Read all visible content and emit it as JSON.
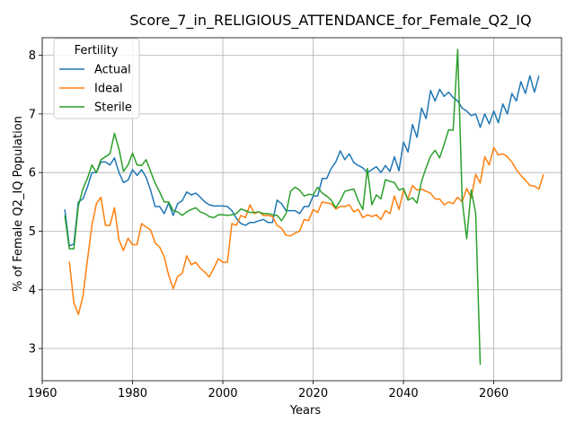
{
  "chart_data": {
    "type": "line",
    "title": "Score_7_in_RELIGIOUS_ATTENDANCE_for_Female_Q2_IQ",
    "xlabel": "Years",
    "ylabel": "% of Female Q2_IQ Population",
    "xlim": [
      1960,
      2075
    ],
    "ylim": [
      2.45,
      8.3
    ],
    "xticks": [
      1960,
      1980,
      2000,
      2020,
      2040,
      2060
    ],
    "xtick_labels": [
      "1960",
      "1980",
      "2000",
      "2020",
      "2040",
      "2060"
    ],
    "yticks": [
      3,
      4,
      5,
      6,
      7,
      8
    ],
    "ytick_labels": [
      "3",
      "4",
      "5",
      "6",
      "7",
      "8"
    ],
    "grid": true,
    "legend": {
      "title": "Fertility",
      "position": "top-left"
    },
    "series": [
      {
        "name": "Actual",
        "color": "#1f77b4",
        "points": [
          [
            1965,
            5.37
          ],
          [
            1966,
            4.75
          ],
          [
            1967,
            4.78
          ],
          [
            1968,
            5.5
          ],
          [
            1969,
            5.55
          ],
          [
            1970,
            5.75
          ],
          [
            1971,
            6.0
          ],
          [
            1972,
            6.0
          ],
          [
            1973,
            6.18
          ],
          [
            1974,
            6.18
          ],
          [
            1975,
            6.13
          ],
          [
            1976,
            6.25
          ],
          [
            1977,
            6.0
          ],
          [
            1978,
            5.83
          ],
          [
            1979,
            5.87
          ],
          [
            1980,
            6.05
          ],
          [
            1981,
            5.95
          ],
          [
            1982,
            6.05
          ],
          [
            1983,
            5.92
          ],
          [
            1984,
            5.7
          ],
          [
            1985,
            5.42
          ],
          [
            1986,
            5.42
          ],
          [
            1987,
            5.3
          ],
          [
            1988,
            5.48
          ],
          [
            1989,
            5.27
          ],
          [
            1990,
            5.47
          ],
          [
            1991,
            5.52
          ],
          [
            1992,
            5.67
          ],
          [
            1993,
            5.62
          ],
          [
            1994,
            5.65
          ],
          [
            1995,
            5.58
          ],
          [
            1996,
            5.5
          ],
          [
            1997,
            5.45
          ],
          [
            1998,
            5.43
          ],
          [
            1999,
            5.43
          ],
          [
            2000,
            5.43
          ],
          [
            2001,
            5.42
          ],
          [
            2002,
            5.35
          ],
          [
            2003,
            5.22
          ],
          [
            2004,
            5.13
          ],
          [
            2005,
            5.1
          ],
          [
            2006,
            5.15
          ],
          [
            2007,
            5.15
          ],
          [
            2008,
            5.18
          ],
          [
            2009,
            5.2
          ],
          [
            2010,
            5.15
          ],
          [
            2011,
            5.15
          ],
          [
            2012,
            5.53
          ],
          [
            2013,
            5.47
          ],
          [
            2014,
            5.35
          ],
          [
            2015,
            5.35
          ],
          [
            2016,
            5.35
          ],
          [
            2017,
            5.3
          ],
          [
            2018,
            5.42
          ],
          [
            2019,
            5.42
          ],
          [
            2020,
            5.6
          ],
          [
            2021,
            5.6
          ],
          [
            2022,
            5.9
          ],
          [
            2023,
            5.9
          ],
          [
            2024,
            6.07
          ],
          [
            2025,
            6.18
          ],
          [
            2026,
            6.37
          ],
          [
            2027,
            6.22
          ],
          [
            2028,
            6.32
          ],
          [
            2029,
            6.17
          ],
          [
            2030,
            6.12
          ],
          [
            2031,
            6.08
          ],
          [
            2032,
            6.0
          ],
          [
            2033,
            6.05
          ],
          [
            2034,
            6.1
          ],
          [
            2035,
            6.0
          ],
          [
            2036,
            6.12
          ],
          [
            2037,
            6.02
          ],
          [
            2038,
            6.27
          ],
          [
            2039,
            6.03
          ],
          [
            2040,
            6.52
          ],
          [
            2041,
            6.35
          ],
          [
            2042,
            6.82
          ],
          [
            2043,
            6.6
          ],
          [
            2044,
            7.1
          ],
          [
            2045,
            6.92
          ],
          [
            2046,
            7.4
          ],
          [
            2047,
            7.22
          ],
          [
            2048,
            7.42
          ],
          [
            2049,
            7.3
          ],
          [
            2050,
            7.37
          ],
          [
            2051,
            7.28
          ],
          [
            2052,
            7.22
          ],
          [
            2053,
            7.1
          ],
          [
            2054,
            7.05
          ],
          [
            2055,
            6.97
          ],
          [
            2056,
            7.0
          ],
          [
            2057,
            6.77
          ],
          [
            2058,
            7.0
          ],
          [
            2059,
            6.83
          ],
          [
            2060,
            7.05
          ],
          [
            2061,
            6.85
          ],
          [
            2062,
            7.17
          ],
          [
            2063,
            7.0
          ],
          [
            2064,
            7.35
          ],
          [
            2065,
            7.22
          ],
          [
            2066,
            7.55
          ],
          [
            2067,
            7.35
          ],
          [
            2068,
            7.65
          ],
          [
            2069,
            7.37
          ],
          [
            2070,
            7.65
          ]
        ]
      },
      {
        "name": "Ideal",
        "color": "#ff7f0e",
        "points": [
          [
            1966,
            4.48
          ],
          [
            1967,
            3.78
          ],
          [
            1968,
            3.58
          ],
          [
            1969,
            3.88
          ],
          [
            1970,
            4.5
          ],
          [
            1971,
            5.1
          ],
          [
            1972,
            5.47
          ],
          [
            1973,
            5.58
          ],
          [
            1974,
            5.1
          ],
          [
            1975,
            5.1
          ],
          [
            1976,
            5.4
          ],
          [
            1977,
            4.85
          ],
          [
            1978,
            4.67
          ],
          [
            1979,
            4.88
          ],
          [
            1980,
            4.77
          ],
          [
            1981,
            4.77
          ],
          [
            1982,
            5.13
          ],
          [
            1983,
            5.07
          ],
          [
            1984,
            5.02
          ],
          [
            1985,
            4.8
          ],
          [
            1986,
            4.73
          ],
          [
            1987,
            4.57
          ],
          [
            1988,
            4.25
          ],
          [
            1989,
            4.02
          ],
          [
            1990,
            4.23
          ],
          [
            1991,
            4.28
          ],
          [
            1992,
            4.58
          ],
          [
            1993,
            4.43
          ],
          [
            1994,
            4.47
          ],
          [
            1995,
            4.37
          ],
          [
            1996,
            4.3
          ],
          [
            1997,
            4.22
          ],
          [
            1998,
            4.37
          ],
          [
            1999,
            4.53
          ],
          [
            2000,
            4.47
          ],
          [
            2001,
            4.47
          ],
          [
            2002,
            5.13
          ],
          [
            2003,
            5.1
          ],
          [
            2004,
            5.27
          ],
          [
            2005,
            5.23
          ],
          [
            2006,
            5.45
          ],
          [
            2007,
            5.3
          ],
          [
            2008,
            5.33
          ],
          [
            2009,
            5.27
          ],
          [
            2010,
            5.27
          ],
          [
            2011,
            5.25
          ],
          [
            2012,
            5.1
          ],
          [
            2013,
            5.05
          ],
          [
            2014,
            4.93
          ],
          [
            2015,
            4.92
          ],
          [
            2016,
            4.97
          ],
          [
            2017,
            5.0
          ],
          [
            2018,
            5.2
          ],
          [
            2019,
            5.18
          ],
          [
            2020,
            5.37
          ],
          [
            2021,
            5.32
          ],
          [
            2022,
            5.5
          ],
          [
            2023,
            5.48
          ],
          [
            2024,
            5.47
          ],
          [
            2025,
            5.38
          ],
          [
            2026,
            5.42
          ],
          [
            2027,
            5.42
          ],
          [
            2028,
            5.45
          ],
          [
            2029,
            5.33
          ],
          [
            2030,
            5.37
          ],
          [
            2031,
            5.23
          ],
          [
            2032,
            5.28
          ],
          [
            2033,
            5.25
          ],
          [
            2034,
            5.28
          ],
          [
            2035,
            5.2
          ],
          [
            2036,
            5.35
          ],
          [
            2037,
            5.3
          ],
          [
            2038,
            5.6
          ],
          [
            2039,
            5.37
          ],
          [
            2040,
            5.7
          ],
          [
            2041,
            5.55
          ],
          [
            2042,
            5.78
          ],
          [
            2043,
            5.7
          ],
          [
            2044,
            5.72
          ],
          [
            2045,
            5.68
          ],
          [
            2046,
            5.65
          ],
          [
            2047,
            5.55
          ],
          [
            2048,
            5.55
          ],
          [
            2049,
            5.45
          ],
          [
            2050,
            5.5
          ],
          [
            2051,
            5.47
          ],
          [
            2052,
            5.58
          ],
          [
            2053,
            5.5
          ],
          [
            2054,
            5.73
          ],
          [
            2055,
            5.57
          ],
          [
            2056,
            5.97
          ],
          [
            2057,
            5.82
          ],
          [
            2058,
            6.27
          ],
          [
            2059,
            6.13
          ],
          [
            2060,
            6.43
          ],
          [
            2061,
            6.3
          ],
          [
            2062,
            6.32
          ],
          [
            2063,
            6.27
          ],
          [
            2064,
            6.18
          ],
          [
            2065,
            6.05
          ],
          [
            2066,
            5.95
          ],
          [
            2067,
            5.87
          ],
          [
            2068,
            5.78
          ],
          [
            2069,
            5.77
          ],
          [
            2070,
            5.72
          ],
          [
            2071,
            5.97
          ]
        ]
      },
      {
        "name": "Sterile",
        "color": "#2ca02c",
        "points": [
          [
            1965,
            5.27
          ],
          [
            1966,
            4.7
          ],
          [
            1967,
            4.7
          ],
          [
            1968,
            5.43
          ],
          [
            1969,
            5.72
          ],
          [
            1970,
            5.9
          ],
          [
            1971,
            6.13
          ],
          [
            1972,
            6.0
          ],
          [
            1973,
            6.22
          ],
          [
            1974,
            6.27
          ],
          [
            1975,
            6.32
          ],
          [
            1976,
            6.67
          ],
          [
            1977,
            6.4
          ],
          [
            1978,
            6.02
          ],
          [
            1979,
            6.13
          ],
          [
            1980,
            6.33
          ],
          [
            1981,
            6.13
          ],
          [
            1982,
            6.12
          ],
          [
            1983,
            6.22
          ],
          [
            1984,
            6.02
          ],
          [
            1985,
            5.82
          ],
          [
            1986,
            5.67
          ],
          [
            1987,
            5.5
          ],
          [
            1988,
            5.5
          ],
          [
            1989,
            5.35
          ],
          [
            1990,
            5.33
          ],
          [
            1991,
            5.27
          ],
          [
            1992,
            5.33
          ],
          [
            1993,
            5.37
          ],
          [
            1994,
            5.4
          ],
          [
            1995,
            5.33
          ],
          [
            1996,
            5.3
          ],
          [
            1997,
            5.25
          ],
          [
            1998,
            5.23
          ],
          [
            1999,
            5.28
          ],
          [
            2000,
            5.28
          ],
          [
            2001,
            5.27
          ],
          [
            2002,
            5.28
          ],
          [
            2003,
            5.3
          ],
          [
            2004,
            5.38
          ],
          [
            2005,
            5.35
          ],
          [
            2006,
            5.32
          ],
          [
            2007,
            5.32
          ],
          [
            2008,
            5.33
          ],
          [
            2009,
            5.3
          ],
          [
            2010,
            5.3
          ],
          [
            2011,
            5.28
          ],
          [
            2012,
            5.27
          ],
          [
            2013,
            5.18
          ],
          [
            2014,
            5.3
          ],
          [
            2015,
            5.68
          ],
          [
            2016,
            5.75
          ],
          [
            2017,
            5.7
          ],
          [
            2018,
            5.6
          ],
          [
            2019,
            5.63
          ],
          [
            2020,
            5.62
          ],
          [
            2021,
            5.75
          ],
          [
            2022,
            5.65
          ],
          [
            2023,
            5.6
          ],
          [
            2024,
            5.53
          ],
          [
            2025,
            5.4
          ],
          [
            2026,
            5.52
          ],
          [
            2027,
            5.68
          ],
          [
            2028,
            5.7
          ],
          [
            2029,
            5.72
          ],
          [
            2030,
            5.52
          ],
          [
            2031,
            5.37
          ],
          [
            2032,
            6.07
          ],
          [
            2033,
            5.45
          ],
          [
            2034,
            5.62
          ],
          [
            2035,
            5.55
          ],
          [
            2036,
            5.88
          ],
          [
            2037,
            5.85
          ],
          [
            2038,
            5.83
          ],
          [
            2039,
            5.7
          ],
          [
            2040,
            5.73
          ],
          [
            2041,
            5.53
          ],
          [
            2042,
            5.57
          ],
          [
            2043,
            5.48
          ],
          [
            2044,
            5.85
          ],
          [
            2045,
            6.08
          ],
          [
            2046,
            6.28
          ],
          [
            2047,
            6.38
          ],
          [
            2048,
            6.25
          ],
          [
            2049,
            6.48
          ],
          [
            2050,
            6.73
          ],
          [
            2051,
            6.72
          ],
          [
            2052,
            8.1
          ],
          [
            2053,
            5.53
          ],
          [
            2054,
            4.87
          ],
          [
            2055,
            5.7
          ],
          [
            2056,
            5.3
          ],
          [
            2057,
            2.72
          ]
        ]
      }
    ]
  }
}
